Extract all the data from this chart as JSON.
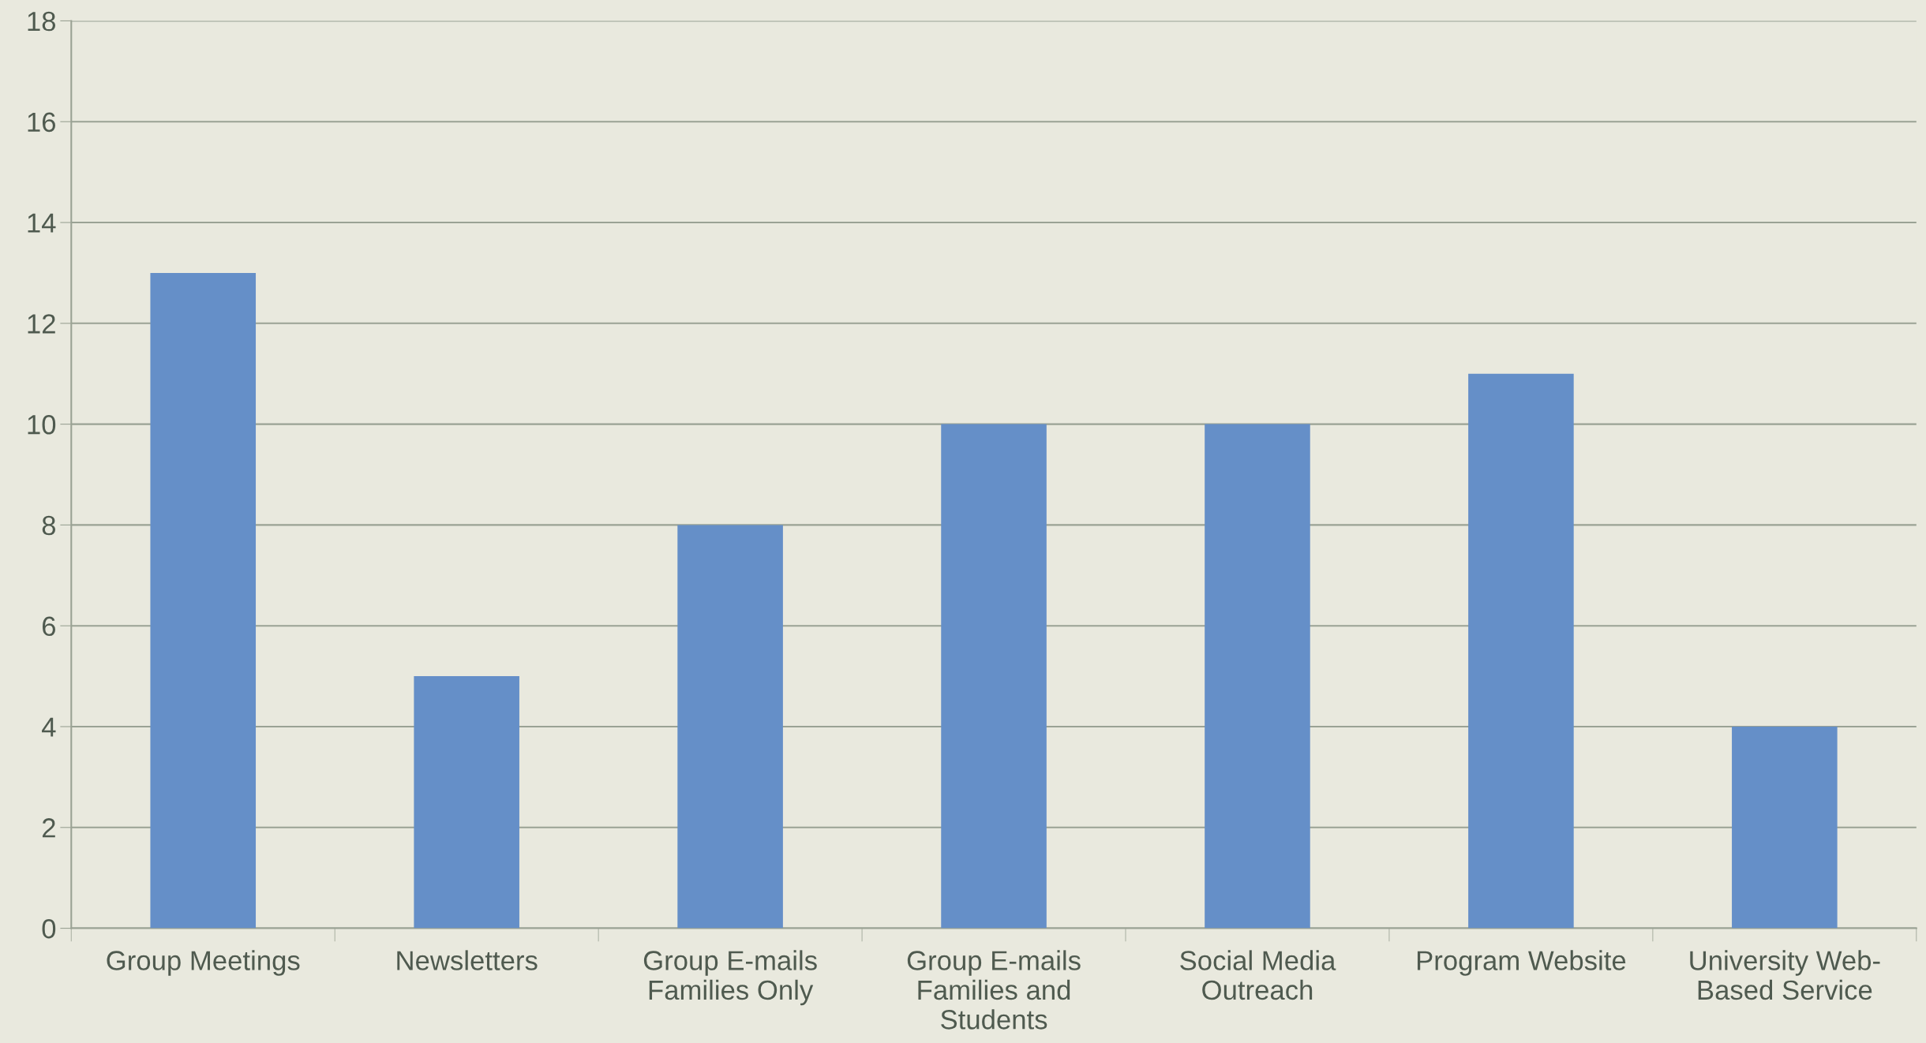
{
  "chart_data": {
    "type": "bar",
    "categories": [
      "Group Meetings",
      "Newsletters",
      "Group E-mails\nFamilies Only",
      "Group E-mails\nFamilies and\nStudents",
      "Social Media\nOutreach",
      "Program Website",
      "University Web-\nBased Service"
    ],
    "values": [
      13,
      5,
      8,
      10,
      10,
      11,
      4
    ],
    "color": "#658fc8",
    "ylim": [
      0,
      18
    ],
    "yticks": [
      0,
      2,
      4,
      6,
      8,
      10,
      12,
      14,
      16,
      18
    ],
    "grid": "y"
  }
}
